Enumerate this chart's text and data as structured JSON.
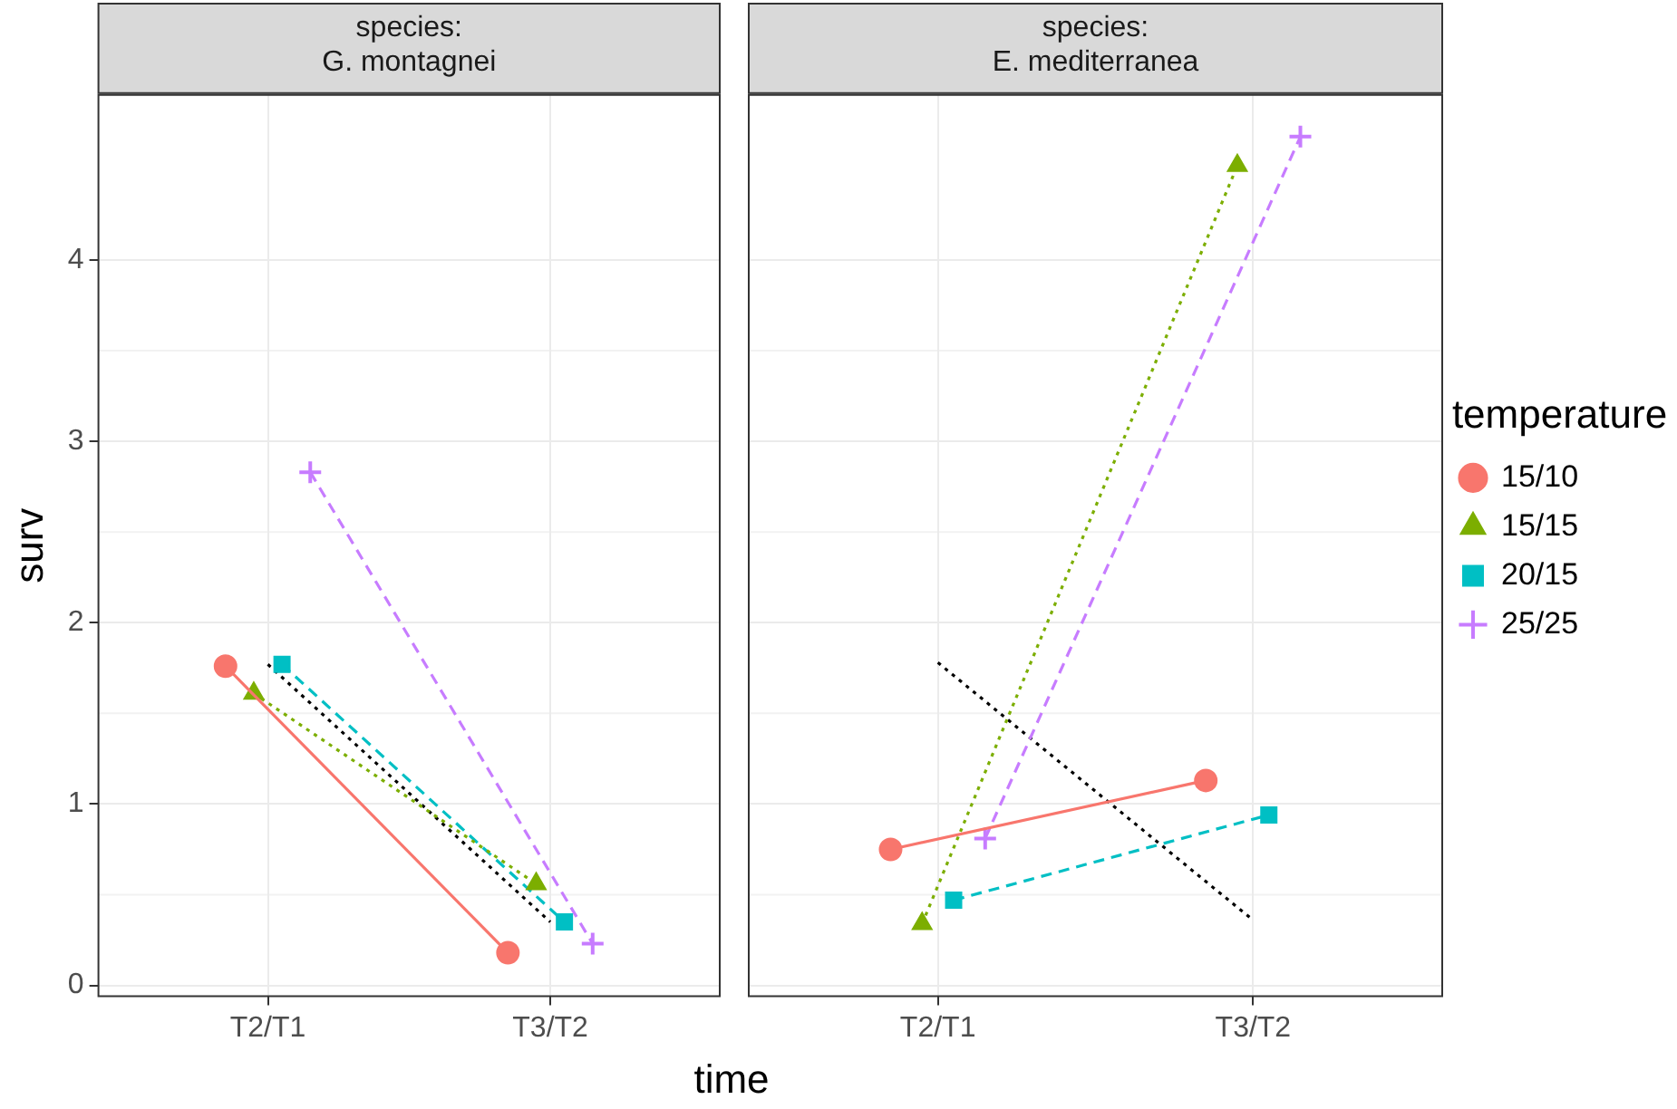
{
  "chart_data": [
    {
      "type": "line",
      "title": "species:\nG. montagnei",
      "ylabel": "surv",
      "xlabel": "time",
      "categories": [
        "T2/T1",
        "T3/T2"
      ],
      "ylim": [
        -0.06,
        4.91
      ],
      "yticks": [
        0,
        1,
        2,
        3,
        4
      ],
      "grid": true,
      "series": [
        {
          "color": "#f8766d",
          "marker": "circle",
          "line_style": "solid",
          "values": [
            1.76,
            0.18
          ]
        },
        {
          "color": "#7cae00",
          "marker": "triangle",
          "line_style": "dotted",
          "values": [
            1.61,
            0.56
          ]
        },
        {
          "color": "#00bfc4",
          "marker": "square",
          "line_style": "dashed",
          "values": [
            1.77,
            0.35
          ]
        },
        {
          "color": "#c77cff",
          "marker": "cross",
          "line_style": "dashed",
          "values": [
            2.83,
            0.23
          ]
        },
        {
          "color": "#000000",
          "marker": "none",
          "line_style": "dotted",
          "values": [
            1.77,
            0.35
          ]
        }
      ]
    },
    {
      "type": "line",
      "title": "species:\nE. mediterranea",
      "legend_title": "temperature",
      "legend": "right",
      "tick_labels": "x",
      "categories": [
        "T2/T1",
        "T3/T2"
      ],
      "ylim": [
        -0.06,
        4.91
      ],
      "yticks": [
        0,
        1,
        2,
        3,
        4
      ],
      "grid": true,
      "series": [
        {
          "name": "15/10",
          "color": "#f8766d",
          "marker": "circle",
          "line_style": "solid",
          "values": [
            0.75,
            1.13
          ]
        },
        {
          "name": "15/15",
          "color": "#7cae00",
          "marker": "triangle",
          "line_style": "dotted",
          "values": [
            0.34,
            4.52
          ]
        },
        {
          "name": "20/15",
          "color": "#00bfc4",
          "marker": "square",
          "line_style": "dashed",
          "values": [
            0.47,
            0.94
          ]
        },
        {
          "name": "25/25",
          "color": "#c77cff",
          "marker": "cross",
          "line_style": "dashed",
          "values": [
            0.81,
            4.68
          ]
        },
        {
          "color": "#000000",
          "marker": "none",
          "line_style": "dotted",
          "values": [
            1.78,
            0.36
          ]
        }
      ]
    }
  ]
}
